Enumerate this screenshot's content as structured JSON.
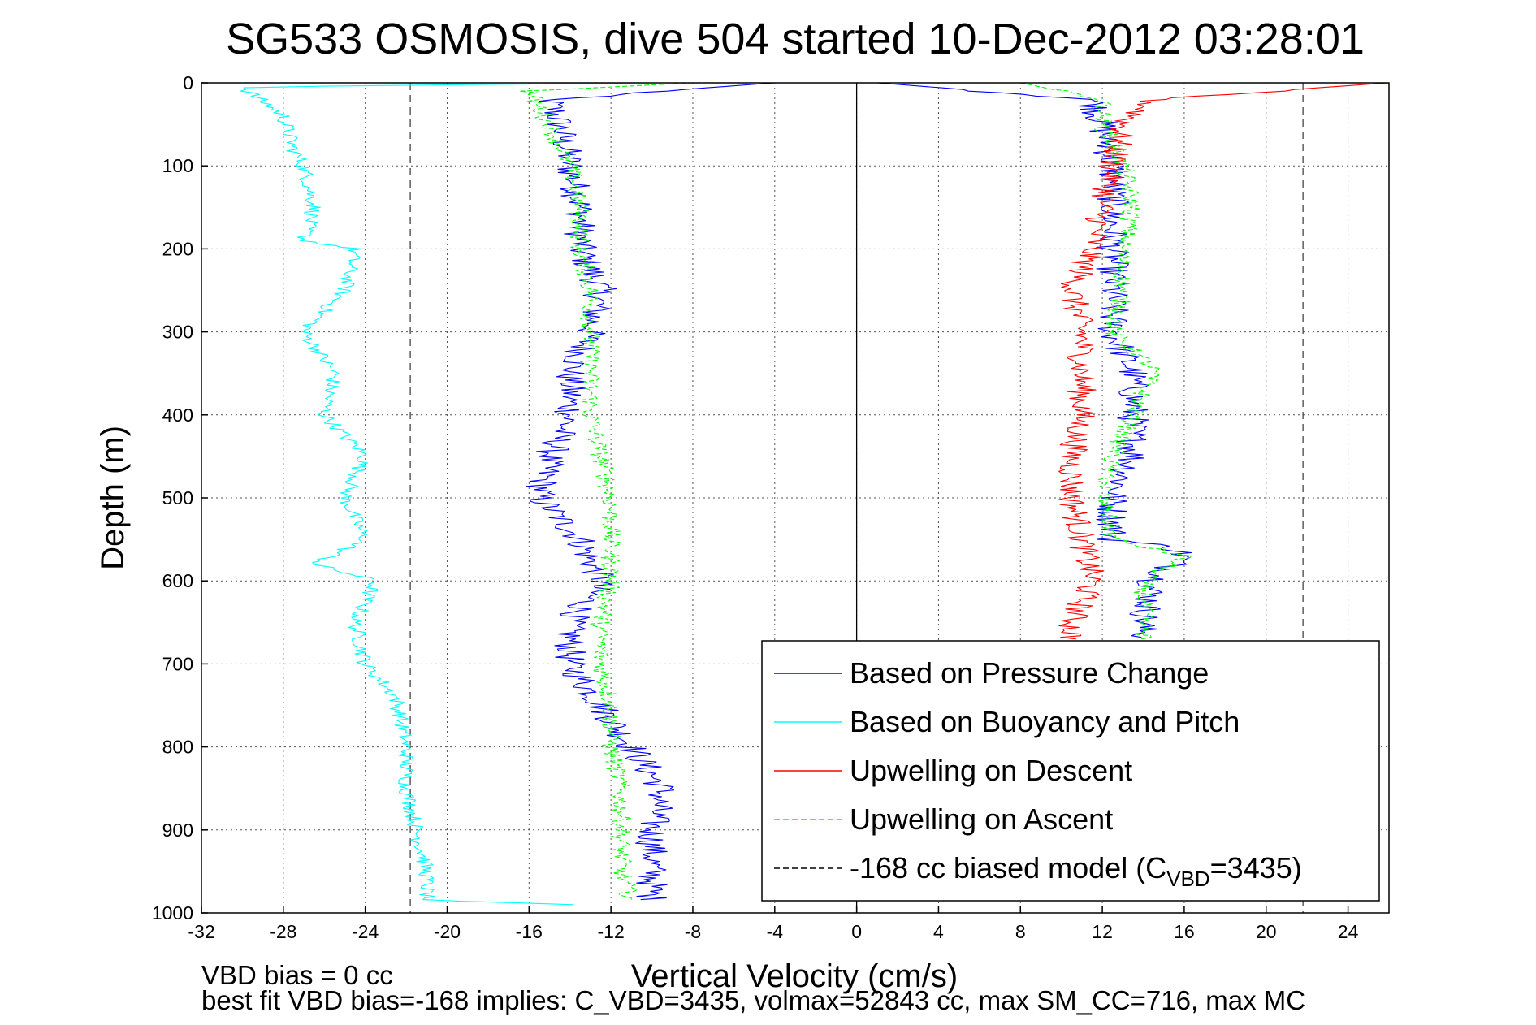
{
  "chart_data": {
    "type": "line",
    "title": "SG533 OSMOSIS, dive 504 started 10-Dec-2012 03:28:01",
    "xlabel": "Vertical Velocity (cm/s)",
    "ylabel": "Depth (m)",
    "xlim": [
      -32,
      26
    ],
    "ylim": [
      0,
      1000
    ],
    "y_reversed": true,
    "grid": true,
    "x_ticks": [
      "-32",
      "-28",
      "-24",
      "-20",
      "-16",
      "-12",
      "-8",
      "-4",
      "0",
      "4",
      "8",
      "12",
      "16",
      "20",
      "24"
    ],
    "y_ticks": [
      "0",
      "100",
      "200",
      "300",
      "400",
      "500",
      "600",
      "700",
      "800",
      "900",
      "1000"
    ],
    "legend_placement": "bottom-right",
    "legend": [
      {
        "label": "Based on Pressure Change",
        "color": "#0000ff",
        "style": "solid"
      },
      {
        "label": "Based on Buoyancy and Pitch",
        "color": "#00ffff",
        "style": "solid"
      },
      {
        "label": "Upwelling on Descent",
        "color": "#ff0000",
        "style": "solid"
      },
      {
        "label": "Upwelling on Ascent",
        "color": "#00ff00",
        "style": "dashed"
      },
      {
        "label_prefix": "-168 cc biased model (C",
        "label_sub": "VBD",
        "label_suffix": "=3435)",
        "color": "#000000",
        "style": "dashed"
      }
    ],
    "reference_lines": [
      {
        "type": "vertical",
        "x": 0,
        "style": "solid"
      },
      {
        "type": "vertical",
        "x": -21.8,
        "style": "dashed"
      },
      {
        "type": "vertical",
        "x": 21.8,
        "style": "dashed"
      }
    ],
    "series": [
      {
        "name": "Based on Pressure Change",
        "color": "#0000ff",
        "noise": 0.8,
        "profiles": [
          {
            "depth": [
              0,
              20,
              50,
              100,
              150,
              200,
              250,
              300,
              350,
              400,
              450,
              500,
              550,
              600,
              650,
              700,
              750,
              800,
              850,
              900,
              950,
              985
            ],
            "velocity": [
              -4,
              -15,
              -14.5,
              -14,
              -13.5,
              -13.5,
              -12.5,
              -13,
              -14,
              -14,
              -15,
              -15.5,
              -13.5,
              -12.5,
              -14,
              -14,
              -12.5,
              -11,
              -9.5,
              -10,
              -10,
              -10
            ]
          },
          {
            "depth": [
              0,
              20,
              50,
              100,
              150,
              200,
              250,
              300,
              350,
              400,
              450,
              500,
              550,
              560,
              570,
              600,
              650,
              670
            ],
            "velocity": [
              1,
              11.5,
              12,
              12.5,
              12.5,
              12.5,
              12.5,
              12.5,
              13.5,
              13.5,
              13.5,
              12.5,
              12.5,
              15.5,
              16,
              14.5,
              14,
              14
            ]
          }
        ]
      },
      {
        "name": "Based on Buoyancy and Pitch",
        "color": "#00ffff",
        "noise": 0.4,
        "profiles": [
          {
            "depth": [
              0,
              5,
              40,
              80,
              100,
              150,
              190,
              200,
              250,
              300,
              350,
              400,
              450,
              500,
              550,
              580,
              600,
              650,
              700,
              740,
              800,
              850,
              900,
              950,
              985,
              990
            ],
            "velocity": [
              -10,
              -30,
              -28,
              -27.5,
              -27,
              -26.5,
              -27,
              -24.5,
              -25,
              -27,
              -25.5,
              -26,
              -24,
              -25,
              -24,
              -26.5,
              -23.5,
              -24.5,
              -24,
              -22.5,
              -22,
              -22,
              -21.5,
              -21,
              -21,
              -14
            ]
          }
        ]
      },
      {
        "name": "Upwelling on Descent",
        "color": "#ff0000",
        "noise": 0.7,
        "profiles": [
          {
            "depth": [
              0,
              20,
              50,
              100,
              150,
              200,
              250,
              300,
              350,
              400,
              450,
              500,
              550,
              600,
              650,
              670
            ],
            "velocity": [
              26,
              14.5,
              13,
              12.5,
              12,
              11.5,
              10.5,
              11,
              11,
              11,
              10.5,
              10.5,
              11,
              11.5,
              10.5,
              10.5
            ]
          }
        ]
      },
      {
        "name": "Upwelling on Ascent",
        "color": "#00ff00",
        "noise": 0.5,
        "dashed": true,
        "profiles": [
          {
            "depth": [
              0,
              10,
              50,
              100,
              150,
              200,
              250,
              300,
              350,
              400,
              450,
              500,
              550,
              600,
              650,
              700,
              750,
              800,
              850,
              900,
              950,
              985
            ],
            "velocity": [
              -8,
              -16,
              -15,
              -14,
              -13.5,
              -13.5,
              -13,
              -13,
              -13,
              -13,
              -12.5,
              -12,
              -12,
              -12,
              -12.5,
              -12.5,
              -12,
              -12,
              -11.5,
              -11.5,
              -11.5,
              -11
            ]
          },
          {
            "depth": [
              0,
              20,
              50,
              100,
              150,
              200,
              250,
              300,
              345,
              400,
              450,
              500,
              550,
              570,
              600,
              650,
              670
            ],
            "velocity": [
              8,
              12,
              12,
              13,
              13.5,
              13,
              13,
              12.5,
              14.5,
              13.5,
              12.5,
              12,
              12.5,
              16,
              14,
              14,
              14
            ]
          }
        ]
      }
    ]
  },
  "footer": {
    "line1": "VBD bias = 0 cc",
    "line2": "best fit VBD bias=-168 implies: C_VBD=3435, volmax=52843 cc, max SM_CC=716, max MC"
  }
}
